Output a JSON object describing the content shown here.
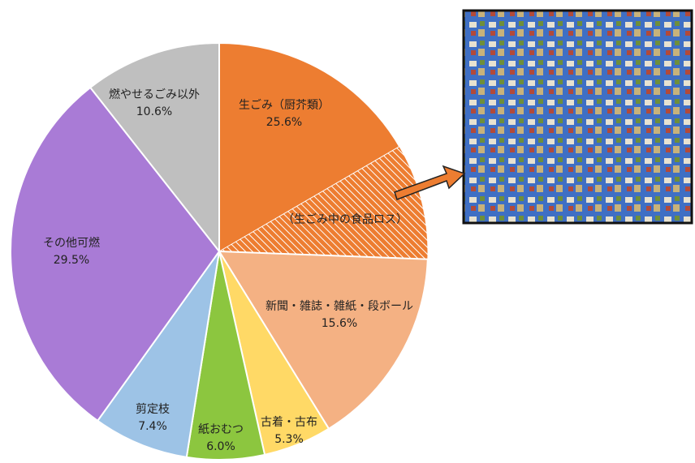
{
  "chart_data": {
    "type": "pie",
    "categories": [
      "生ごみ（厨芥類）",
      "新聞・雑誌・雑紙・段ボール",
      "古着・古布",
      "紙おむつ",
      "剪定枝",
      "その他可燃",
      "燃やせるごみ以外"
    ],
    "values": [
      25.6,
      15.6,
      5.3,
      6.0,
      7.4,
      29.5,
      10.6
    ],
    "value_labels": [
      "25.6%",
      "15.6%",
      "5.3%",
      "6.0%",
      "7.4%",
      "29.5%",
      "10.6%"
    ],
    "colors": [
      "#ED7D31",
      "#F4B183",
      "#FFD966",
      "#8CC63F",
      "#9DC3E6",
      "#A97BD6",
      "#BFBFBF"
    ],
    "subsegment": {
      "label": "（生ごみ中の食品ロス）",
      "value": 9
    }
  }
}
